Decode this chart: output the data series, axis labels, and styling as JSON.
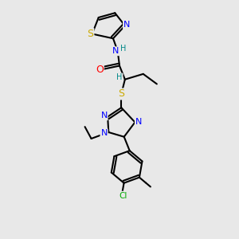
{
  "background_color": "#e8e8e8",
  "atom_colors": {
    "C": "#000000",
    "N": "#0000ff",
    "O": "#ff0000",
    "S": "#ccaa00",
    "Cl": "#00aa00",
    "H": "#008888"
  },
  "bond_color": "#000000",
  "bond_width": 1.5,
  "font_size": 8,
  "xlim": [
    0,
    10
  ],
  "ylim": [
    0,
    13
  ]
}
